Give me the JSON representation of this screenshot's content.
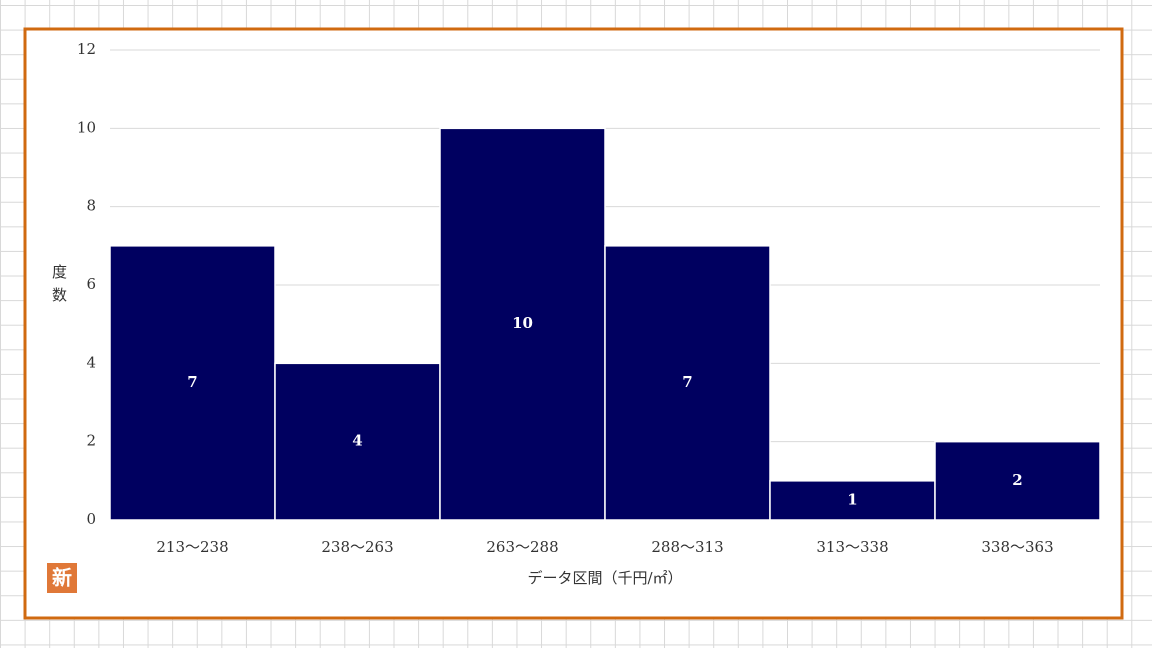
{
  "chart_data": {
    "type": "bar",
    "categories": [
      "213～238",
      "238～263",
      "263～288",
      "288～313",
      "313～338",
      "338～363"
    ],
    "values": [
      7,
      4,
      10,
      7,
      1,
      2
    ],
    "color": "#000060",
    "ylim": [
      0,
      12
    ],
    "yticks": [
      0,
      2,
      4,
      6,
      8,
      10,
      12
    ],
    "grid": true,
    "y_label": "度数",
    "x_label": "データ区間（千円/㎡）",
    "annotation": "新"
  }
}
